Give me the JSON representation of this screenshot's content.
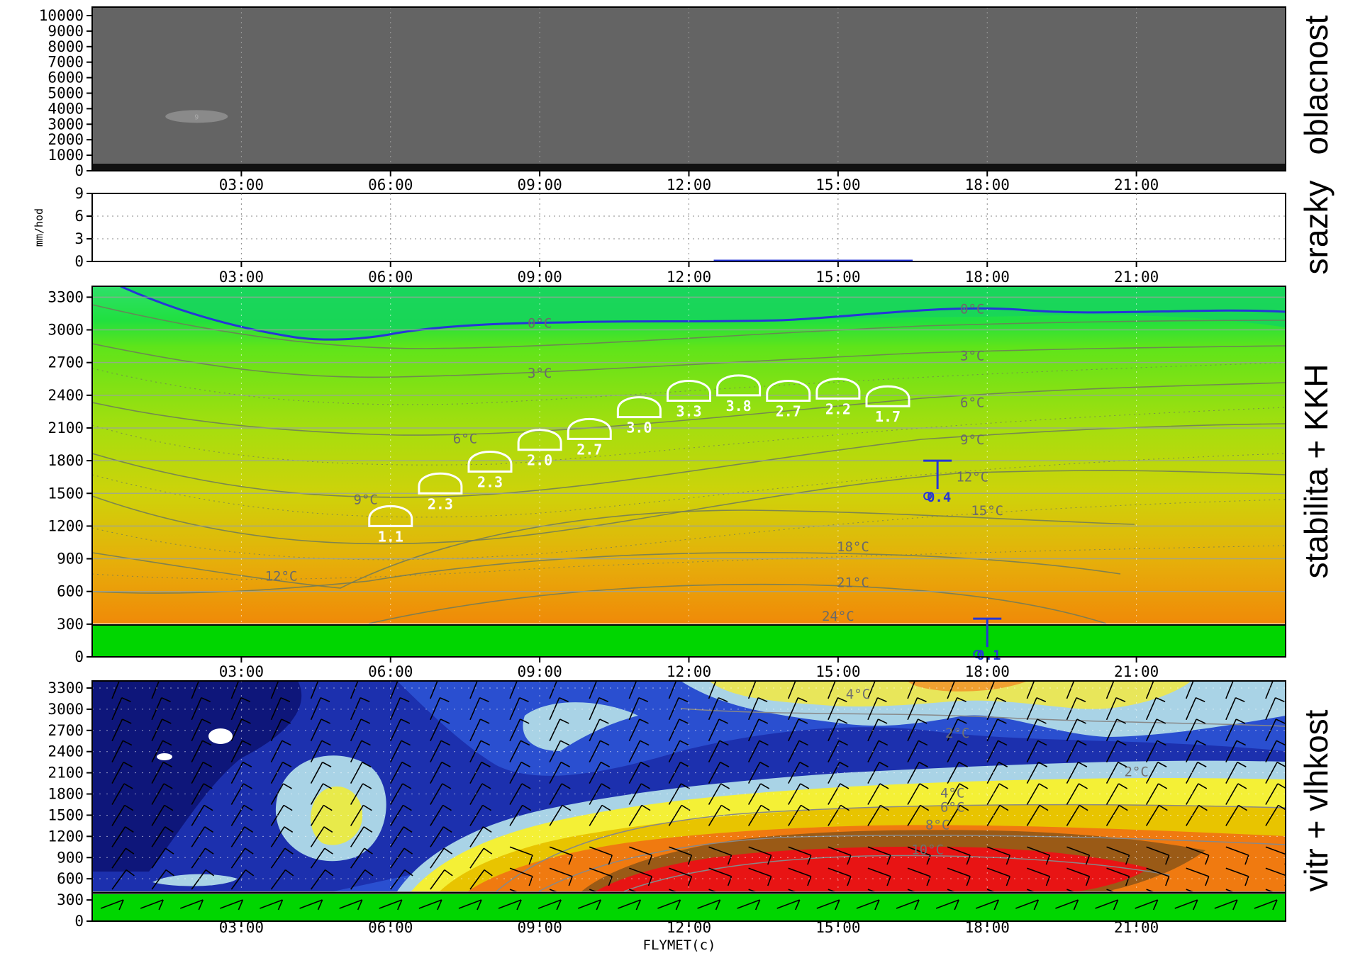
{
  "chart_data": [
    {
      "type": "heatmap",
      "panel_label": "oblacnost",
      "xlabel": "",
      "ylabel": "",
      "ylim": [
        0,
        10000
      ],
      "y_ticks": [
        "10000",
        "9000",
        "8000",
        "7000",
        "6000",
        "5000",
        "4000",
        "3000",
        "2000",
        "1000",
        "0"
      ],
      "x_ticks": [
        "03:00",
        "06:00",
        "09:00",
        "12:00",
        "15:00",
        "18:00",
        "21:00"
      ],
      "x_range_hours": [
        0,
        24
      ],
      "grid": "dotted vertical",
      "cloud_patches": [
        {
          "hour": 2.1,
          "height_m": 3500,
          "label": "9"
        }
      ]
    },
    {
      "type": "line",
      "panel_label": "srazky",
      "ylabel": "mm/hod",
      "ylim": [
        0,
        9
      ],
      "y_ticks": [
        "9",
        "6",
        "3",
        "0"
      ],
      "x_ticks": [
        "03:00",
        "06:00",
        "09:00",
        "12:00",
        "15:00",
        "18:00",
        "21:00"
      ],
      "grid": "dotted",
      "series": [
        {
          "x": [
            12.5,
            16.5
          ],
          "y": [
            0.05,
            0.05
          ]
        }
      ]
    },
    {
      "type": "heatmap",
      "panel_label": "stabilita + KKH",
      "ylim": [
        0,
        3400
      ],
      "y_ticks": [
        "3300",
        "3000",
        "2700",
        "2400",
        "2100",
        "1800",
        "1500",
        "1200",
        "900",
        "600",
        "300",
        "0"
      ],
      "x_ticks": [
        "03:00",
        "06:00",
        "09:00",
        "12:00",
        "15:00",
        "18:00",
        "21:00"
      ],
      "ground_m": 300,
      "isotherm_labels": [
        {
          "hour": 9.0,
          "height_m": 3020,
          "label": "0°C"
        },
        {
          "hour": 17.7,
          "height_m": 3150,
          "label": "0°C"
        },
        {
          "hour": 9.0,
          "height_m": 2560,
          "label": "3°C"
        },
        {
          "hour": 17.7,
          "height_m": 2720,
          "label": "3°C"
        },
        {
          "hour": 7.5,
          "height_m": 1960,
          "label": "6°C"
        },
        {
          "hour": 17.7,
          "height_m": 2290,
          "label": "6°C"
        },
        {
          "hour": 5.5,
          "height_m": 1400,
          "label": "9°C"
        },
        {
          "hour": 17.7,
          "height_m": 1950,
          "label": "9°C"
        },
        {
          "hour": 17.7,
          "height_m": 1610,
          "label": "12°C"
        },
        {
          "hour": 3.8,
          "height_m": 700,
          "label": "12°C"
        },
        {
          "hour": 18.0,
          "height_m": 1300,
          "label": "15°C"
        },
        {
          "hour": 15.3,
          "height_m": 970,
          "label": "18°C"
        },
        {
          "hour": 15.3,
          "height_m": 640,
          "label": "21°C"
        },
        {
          "hour": 15.0,
          "height_m": 330,
          "label": "24°C"
        }
      ],
      "kkh": [
        {
          "hour": 6.0,
          "height_m": 1200,
          "label": "1.1"
        },
        {
          "hour": 7.0,
          "height_m": 1500,
          "label": "2.3"
        },
        {
          "hour": 8.0,
          "height_m": 1700,
          "label": "2.3"
        },
        {
          "hour": 9.0,
          "height_m": 1900,
          "label": "2.0"
        },
        {
          "hour": 10.0,
          "height_m": 2000,
          "label": "2.7"
        },
        {
          "hour": 11.0,
          "height_m": 2200,
          "label": "3.0"
        },
        {
          "hour": 12.0,
          "height_m": 2350,
          "label": "3.3"
        },
        {
          "hour": 13.0,
          "height_m": 2400,
          "label": "3.8"
        },
        {
          "hour": 14.0,
          "height_m": 2350,
          "label": "2.7"
        },
        {
          "hour": 15.0,
          "height_m": 2370,
          "label": "2.2"
        },
        {
          "hour": 16.0,
          "height_m": 2300,
          "label": "1.7"
        }
      ],
      "blue_markers": [
        {
          "hour": 17.0,
          "height_m": 1800,
          "label": "0.4"
        },
        {
          "hour": 18.0,
          "height_m": 350,
          "label": "0.1"
        }
      ]
    },
    {
      "type": "heatmap",
      "panel_label": "vitr + vlhkost",
      "ylim": [
        0,
        3400
      ],
      "y_ticks": [
        "3300",
        "3000",
        "2700",
        "2400",
        "2100",
        "1800",
        "1500",
        "1200",
        "900",
        "600",
        "300",
        "0"
      ],
      "x_ticks": [
        "03:00",
        "06:00",
        "09:00",
        "12:00",
        "15:00",
        "18:00",
        "21:00"
      ],
      "ground_m": 300,
      "dewpoint_labels": [
        {
          "hour": 15.4,
          "height_m": 3150,
          "label": "4°C"
        },
        {
          "hour": 17.4,
          "height_m": 2600,
          "label": "2°C"
        },
        {
          "hour": 21.0,
          "height_m": 2050,
          "label": "2°C"
        },
        {
          "hour": 17.3,
          "height_m": 1750,
          "label": "4°C"
        },
        {
          "hour": 17.3,
          "height_m": 1550,
          "label": "6°C"
        },
        {
          "hour": 17.0,
          "height_m": 1300,
          "label": "8°C"
        },
        {
          "hour": 16.8,
          "height_m": 950,
          "label": "10°C"
        }
      ],
      "footer": "FLYMET(c)"
    }
  ]
}
